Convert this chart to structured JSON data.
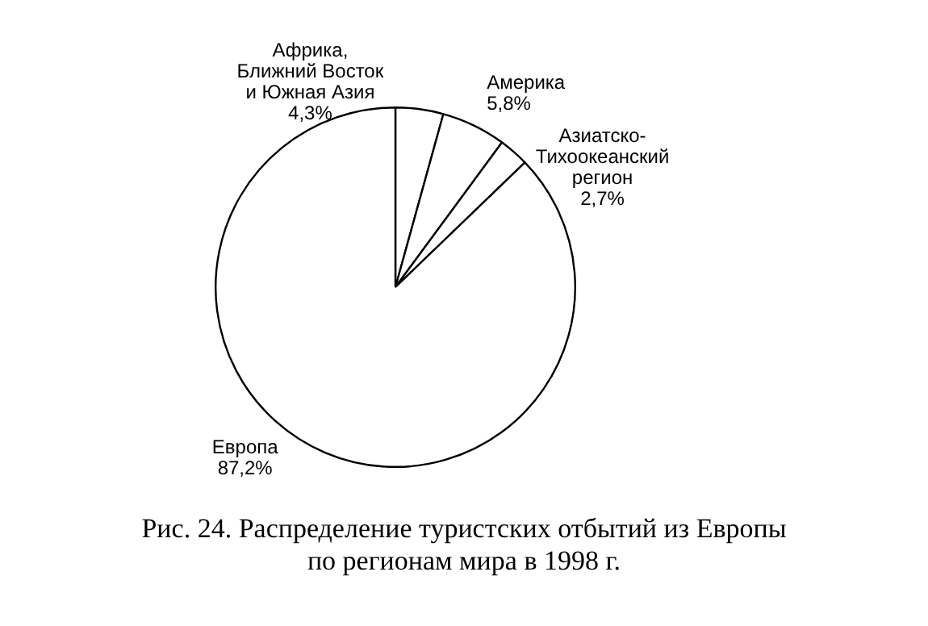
{
  "chart_data": {
    "type": "pie",
    "title": "Рис. 24. Распределение туристских отбытий из Европы\nпо регионам мира в 1998 г.",
    "categories": [
      "Африка,\nБлижний Восток\nи Южная Азия",
      "Америка",
      "Азиатско-\nТихоокеанский\nрегион",
      "Европа"
    ],
    "values": [
      4.3,
      5.8,
      2.7,
      87.2
    ],
    "value_labels": [
      "4,3%",
      "5,8%",
      "2,7%",
      "87,2%"
    ],
    "colors": [
      "#ffffff",
      "#ffffff",
      "#ffffff",
      "#ffffff"
    ],
    "legend": false
  }
}
